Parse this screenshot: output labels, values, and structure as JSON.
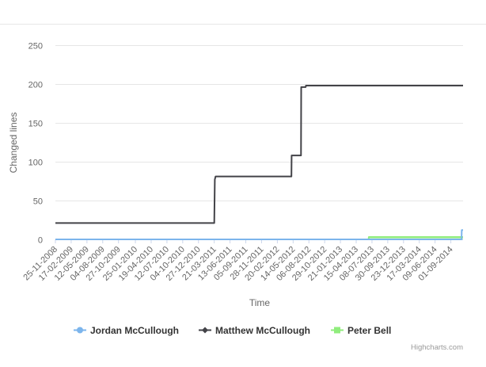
{
  "chart_data": {
    "type": "line",
    "title": "",
    "xlabel": "Time",
    "ylabel": "Changed lines",
    "ylim": [
      0,
      250
    ],
    "y_ticks": [
      0,
      50,
      100,
      150,
      200,
      250
    ],
    "x_range": [
      "2008-11-25",
      "2014-11-05"
    ],
    "x_tick_labels": [
      "25-11-2008",
      "17-02-2009",
      "12-05-2009",
      "04-08-2009",
      "27-10-2009",
      "25-01-2010",
      "19-04-2010",
      "12-07-2010",
      "04-10-2010",
      "27-12-2010",
      "21-03-2011",
      "13-06-2011",
      "05-09-2011",
      "28-11-2011",
      "20-02-2012",
      "14-05-2012",
      "06-08-2012",
      "29-10-2012",
      "21-01-2013",
      "15-04-2013",
      "08-07-2013",
      "30-09-2013",
      "23-12-2013",
      "17-03-2014",
      "09-06-2014",
      "01-09-2014"
    ],
    "grid": true,
    "legend_position": "bottom-center",
    "series": [
      {
        "name": "Jordan McCullough",
        "color": "#7cb5ec",
        "marker": "circle",
        "points": [
          [
            "2008-11-25",
            0
          ],
          [
            "2014-10-28",
            0
          ],
          [
            "2014-10-29",
            12
          ],
          [
            "2014-11-05",
            12
          ]
        ]
      },
      {
        "name": "Matthew McCullough",
        "color": "#434348",
        "marker": "diamond",
        "points": [
          [
            "2008-11-25",
            21
          ],
          [
            "2011-03-21",
            21
          ],
          [
            "2011-03-24",
            77
          ],
          [
            "2011-03-28",
            81
          ],
          [
            "2012-05-05",
            81
          ],
          [
            "2012-05-06",
            108
          ],
          [
            "2012-06-25",
            108
          ],
          [
            "2012-06-26",
            196
          ],
          [
            "2012-07-20",
            196
          ],
          [
            "2012-07-21",
            198
          ],
          [
            "2014-11-05",
            198
          ]
        ]
      },
      {
        "name": "Peter Bell",
        "color": "#90ed7d",
        "marker": "square",
        "points": [
          [
            "2008-11-25",
            0
          ],
          [
            "2013-06-20",
            0
          ],
          [
            "2013-06-21",
            3
          ],
          [
            "2014-11-05",
            3
          ]
        ]
      }
    ]
  },
  "credits": "Highcharts.com"
}
